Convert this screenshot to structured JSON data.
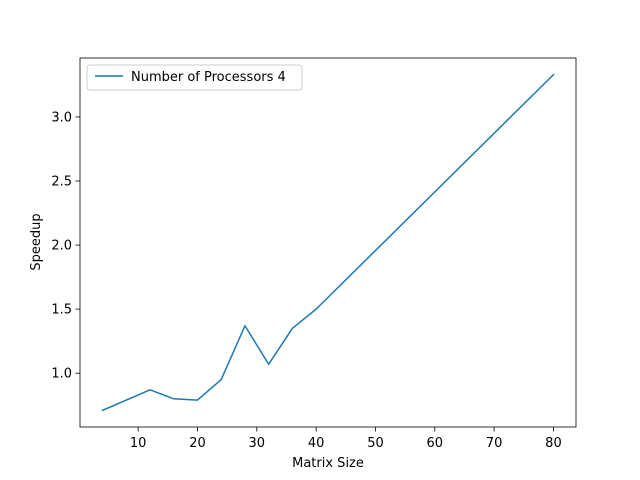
{
  "chart_data": {
    "type": "line",
    "xlabel": "Matrix Size",
    "ylabel": "Speedup",
    "xlim": [
      0.2,
      83.8
    ],
    "ylim": [
      0.58,
      3.46
    ],
    "xticks": [
      10,
      20,
      30,
      40,
      50,
      60,
      70,
      80
    ],
    "yticks": [
      1.0,
      1.5,
      2.0,
      2.5,
      3.0
    ],
    "xtick_labels": [
      "10",
      "20",
      "30",
      "40",
      "50",
      "60",
      "70",
      "80"
    ],
    "ytick_labels": [
      "1.0",
      "1.5",
      "2.0",
      "2.5",
      "3.0"
    ],
    "grid": false,
    "legend_position": "top-left",
    "series": [
      {
        "name": "Number of Processors 4",
        "color": "#1f77b4",
        "x": [
          4,
          8,
          12,
          16,
          20,
          24,
          28,
          32,
          36,
          40,
          80
        ],
        "y": [
          0.71,
          0.79,
          0.87,
          0.8,
          0.79,
          0.95,
          1.37,
          1.07,
          1.35,
          1.5,
          3.33
        ]
      }
    ]
  }
}
